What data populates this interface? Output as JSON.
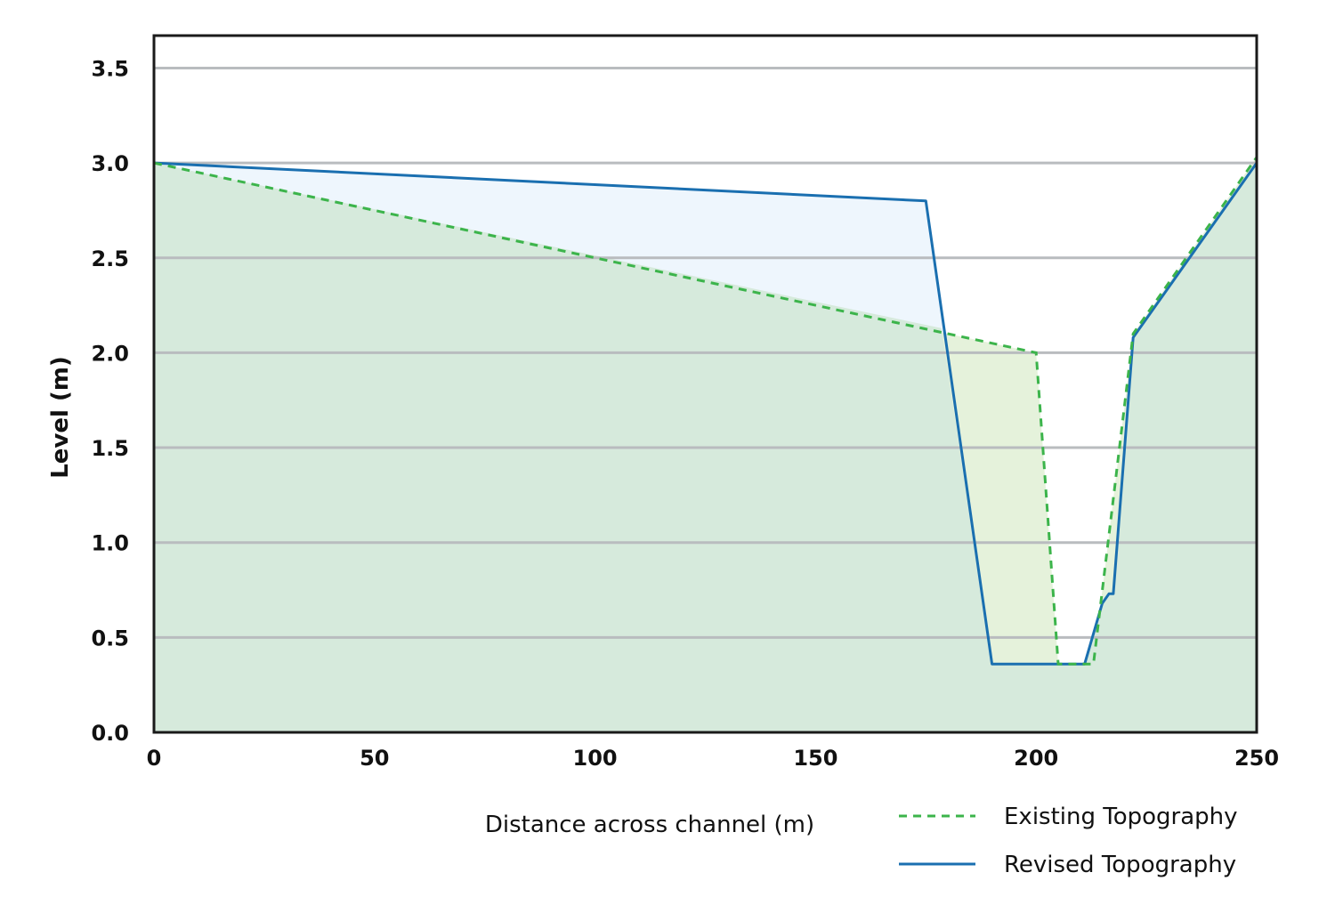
{
  "chart_data": {
    "type": "area",
    "title": "",
    "xlabel": "Distance across channel (m)",
    "ylabel": "Level (m)",
    "xlim": [
      0,
      250
    ],
    "ylim": [
      0,
      3.5
    ],
    "x_ticks": [
      "0",
      "50",
      "100",
      "150",
      "200",
      "250"
    ],
    "y_ticks": [
      "0.0",
      "0.5",
      "1.0",
      "1.5",
      "2.0",
      "2.5",
      "3.0",
      "3.5"
    ],
    "grid": "horizontal",
    "legend_position": "bottom-right",
    "series": [
      {
        "name": "Existing Topography",
        "style": "dashed",
        "color": "#3cb44b",
        "points": [
          [
            0,
            3.0
          ],
          [
            200,
            2.0
          ],
          [
            205,
            0.36
          ],
          [
            213,
            0.36
          ],
          [
            222,
            2.1
          ],
          [
            250,
            3.03
          ]
        ]
      },
      {
        "name": "Revised Topography",
        "style": "solid",
        "color": "#1a6fb0",
        "points": [
          [
            0,
            3.0
          ],
          [
            175,
            2.8
          ],
          [
            190,
            0.36
          ],
          [
            211,
            0.36
          ],
          [
            215,
            0.68
          ],
          [
            216.5,
            0.73
          ],
          [
            217.5,
            0.73
          ],
          [
            222,
            2.08
          ],
          [
            250,
            3.0
          ]
        ]
      }
    ],
    "fills": {
      "ground": "#d6eadc",
      "raised": "#eef6fd",
      "lowered": "#e5f2db"
    }
  }
}
